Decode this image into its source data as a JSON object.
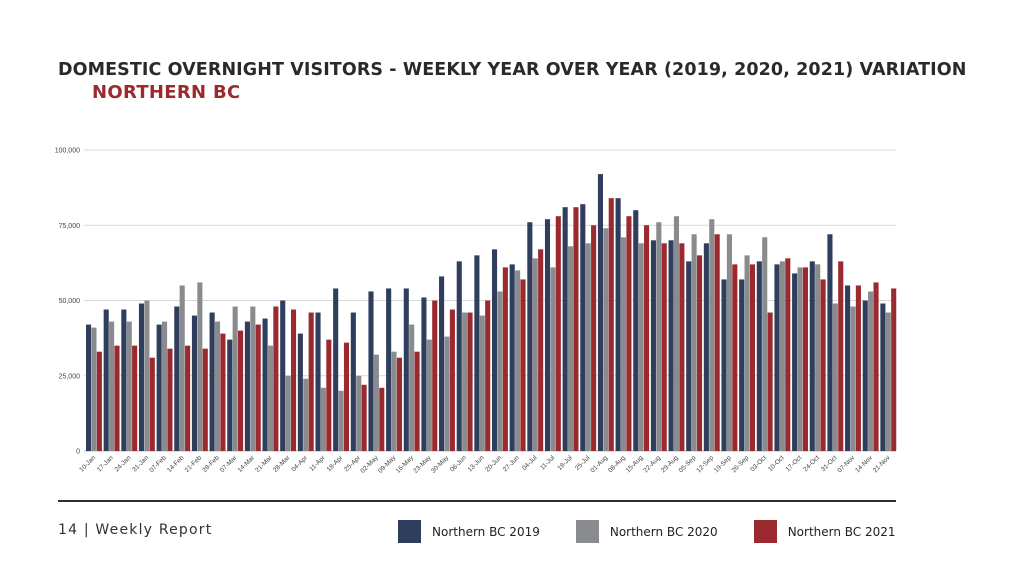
{
  "title": "DOMESTIC OVERNIGHT VISITORS - WEEKLY YEAR OVER YEAR (2019, 2020, 2021) VARIATION",
  "subtitle": "NORTHERN BC",
  "footer": {
    "page_label": "14 | Weekly Report"
  },
  "colors": {
    "s2019": "#2f3e5c",
    "s2020": "#898b8e",
    "s2021": "#9b2a2f",
    "grid": "#d9d9d9"
  },
  "chart_data": {
    "type": "bar",
    "ylim": [
      0,
      100000
    ],
    "yticks": [
      "0",
      "25,000",
      "50,000",
      "75,000",
      "100,000"
    ],
    "ytick_values": [
      0,
      25000,
      50000,
      75000,
      100000
    ],
    "grid": true,
    "legend_position": "bottom",
    "categories": [
      "10-Jan",
      "17-Jan",
      "24-Jan",
      "31-Jan",
      "07-Feb",
      "14-Feb",
      "21-Feb",
      "28-Feb",
      "07-Mar",
      "14-Mar",
      "21-Mar",
      "28-Mar",
      "04-Apr",
      "11-Apr",
      "18-Apr",
      "25-Apr",
      "02-May",
      "09-May",
      "16-May",
      "23-May",
      "30-May",
      "06-Jun",
      "13-Jun",
      "20-Jun",
      "27-Jun",
      "04-Jul",
      "11-Jul",
      "18-Jul",
      "25-Jul",
      "01-Aug",
      "08-Aug",
      "15-Aug",
      "22-Aug",
      "29-Aug",
      "05-Sep",
      "12-Sep",
      "19-Sep",
      "26-Sep",
      "03-Oct",
      "10-Oct",
      "17-Oct",
      "24-Oct",
      "31-Oct",
      "07-Nov",
      "14-Nov",
      "21-Nov"
    ],
    "series": [
      {
        "name": "Northern BC 2019",
        "color": "#2f3e5c",
        "values": [
          42000,
          47000,
          47000,
          49000,
          42000,
          48000,
          45000,
          46000,
          37000,
          43000,
          44000,
          50000,
          39000,
          46000,
          54000,
          46000,
          53000,
          54000,
          54000,
          51000,
          58000,
          63000,
          65000,
          67000,
          62000,
          76000,
          77000,
          81000,
          82000,
          92000,
          84000,
          80000,
          70000,
          70000,
          63000,
          69000,
          57000,
          57000,
          63000,
          62000,
          59000,
          63000,
          72000,
          55000,
          50000,
          49000
        ]
      },
      {
        "name": "Northern BC 2020",
        "color": "#898b8e",
        "values": [
          41000,
          43000,
          43000,
          50000,
          43000,
          55000,
          56000,
          43000,
          48000,
          48000,
          35000,
          25000,
          24000,
          21000,
          20000,
          25000,
          32000,
          33000,
          42000,
          37000,
          38000,
          46000,
          45000,
          53000,
          60000,
          64000,
          61000,
          68000,
          69000,
          74000,
          71000,
          69000,
          76000,
          78000,
          72000,
          77000,
          72000,
          65000,
          71000,
          63000,
          61000,
          62000,
          49000,
          48000,
          53000,
          46000
        ]
      },
      {
        "name": "Northern BC  2021",
        "color": "#9b2a2f",
        "values": [
          33000,
          35000,
          35000,
          31000,
          34000,
          35000,
          34000,
          39000,
          40000,
          42000,
          48000,
          47000,
          46000,
          37000,
          36000,
          22000,
          21000,
          31000,
          33000,
          50000,
          47000,
          46000,
          50000,
          61000,
          57000,
          67000,
          78000,
          81000,
          75000,
          84000,
          78000,
          75000,
          69000,
          69000,
          65000,
          72000,
          62000,
          62000,
          46000,
          64000,
          61000,
          57000,
          63000,
          55000,
          56000,
          54000
        ]
      }
    ]
  }
}
